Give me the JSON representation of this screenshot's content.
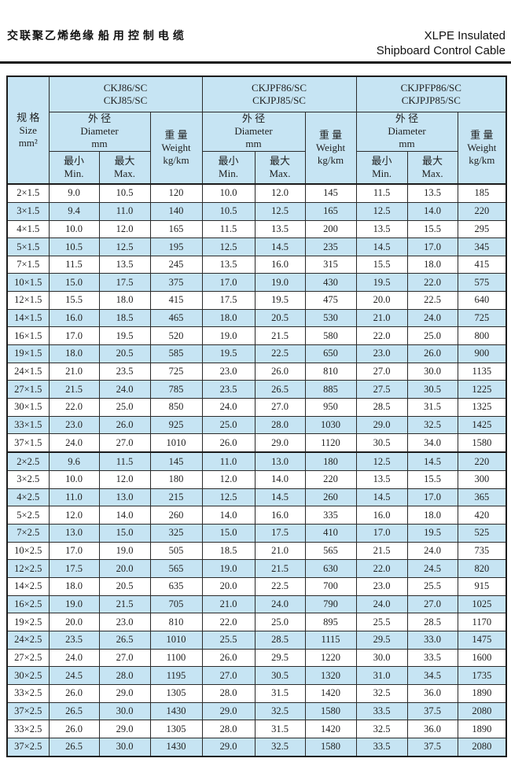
{
  "page": {
    "title_cn_line1": "交联聚乙烯绝缘",
    "title_cn_line2": "船用控制电缆",
    "title_en_line1": "XLPE Insulated",
    "title_en_line2": "Shipboard Control Cable"
  },
  "colors": {
    "stripe_blue": "#c6e4f3",
    "stripe_white": "#ffffff",
    "border": "#1c1c1c"
  },
  "table": {
    "size_header": {
      "cn": "规 格",
      "en": "Size",
      "unit": "mm²"
    },
    "groups": [
      {
        "model_line1": "CKJ86/SC",
        "model_line2": "CKJ85/SC"
      },
      {
        "model_line1": "CKJPF86/SC",
        "model_line2": "CKJPJ85/SC"
      },
      {
        "model_line1": "CKJPFP86/SC",
        "model_line2": "CKJPJP85/SC"
      }
    ],
    "diameter_header": {
      "cn": "外 径",
      "en": "Diameter",
      "unit": "mm"
    },
    "weight_header": {
      "cn": "重 量",
      "en": "Weight",
      "unit": "kg/km"
    },
    "min_header": {
      "cn": "最小",
      "en": "Min."
    },
    "max_header": {
      "cn": "最大",
      "en": "Max."
    },
    "separator_before_row_index": 15,
    "rows": [
      [
        "2×1.5",
        "9.0",
        "10.5",
        "120",
        "10.0",
        "12.0",
        "145",
        "11.5",
        "13.5",
        "185"
      ],
      [
        "3×1.5",
        "9.4",
        "11.0",
        "140",
        "10.5",
        "12.5",
        "165",
        "12.5",
        "14.0",
        "220"
      ],
      [
        "4×1.5",
        "10.0",
        "12.0",
        "165",
        "11.5",
        "13.5",
        "200",
        "13.5",
        "15.5",
        "295"
      ],
      [
        "5×1.5",
        "10.5",
        "12.5",
        "195",
        "12.5",
        "14.5",
        "235",
        "14.5",
        "17.0",
        "345"
      ],
      [
        "7×1.5",
        "11.5",
        "13.5",
        "245",
        "13.5",
        "16.0",
        "315",
        "15.5",
        "18.0",
        "415"
      ],
      [
        "10×1.5",
        "15.0",
        "17.5",
        "375",
        "17.0",
        "19.0",
        "430",
        "19.5",
        "22.0",
        "575"
      ],
      [
        "12×1.5",
        "15.5",
        "18.0",
        "415",
        "17.5",
        "19.5",
        "475",
        "20.0",
        "22.5",
        "640"
      ],
      [
        "14×1.5",
        "16.0",
        "18.5",
        "465",
        "18.0",
        "20.5",
        "530",
        "21.0",
        "24.0",
        "725"
      ],
      [
        "16×1.5",
        "17.0",
        "19.5",
        "520",
        "19.0",
        "21.5",
        "580",
        "22.0",
        "25.0",
        "800"
      ],
      [
        "19×1.5",
        "18.0",
        "20.5",
        "585",
        "19.5",
        "22.5",
        "650",
        "23.0",
        "26.0",
        "900"
      ],
      [
        "24×1.5",
        "21.0",
        "23.5",
        "725",
        "23.0",
        "26.0",
        "810",
        "27.0",
        "30.0",
        "1135"
      ],
      [
        "27×1.5",
        "21.5",
        "24.0",
        "785",
        "23.5",
        "26.5",
        "885",
        "27.5",
        "30.5",
        "1225"
      ],
      [
        "30×1.5",
        "22.0",
        "25.0",
        "850",
        "24.0",
        "27.0",
        "950",
        "28.5",
        "31.5",
        "1325"
      ],
      [
        "33×1.5",
        "23.0",
        "26.0",
        "925",
        "25.0",
        "28.0",
        "1030",
        "29.0",
        "32.5",
        "1425"
      ],
      [
        "37×1.5",
        "24.0",
        "27.0",
        "1010",
        "26.0",
        "29.0",
        "1120",
        "30.5",
        "34.0",
        "1580"
      ],
      [
        "2×2.5",
        "9.6",
        "11.5",
        "145",
        "11.0",
        "13.0",
        "180",
        "12.5",
        "14.5",
        "220"
      ],
      [
        "3×2.5",
        "10.0",
        "12.0",
        "180",
        "12.0",
        "14.0",
        "220",
        "13.5",
        "15.5",
        "300"
      ],
      [
        "4×2.5",
        "11.0",
        "13.0",
        "215",
        "12.5",
        "14.5",
        "260",
        "14.5",
        "17.0",
        "365"
      ],
      [
        "5×2.5",
        "12.0",
        "14.0",
        "260",
        "14.0",
        "16.0",
        "335",
        "16.0",
        "18.0",
        "420"
      ],
      [
        "7×2.5",
        "13.0",
        "15.0",
        "325",
        "15.0",
        "17.5",
        "410",
        "17.0",
        "19.5",
        "525"
      ],
      [
        "10×2.5",
        "17.0",
        "19.0",
        "505",
        "18.5",
        "21.0",
        "565",
        "21.5",
        "24.0",
        "735"
      ],
      [
        "12×2.5",
        "17.5",
        "20.0",
        "565",
        "19.0",
        "21.5",
        "630",
        "22.0",
        "24.5",
        "820"
      ],
      [
        "14×2.5",
        "18.0",
        "20.5",
        "635",
        "20.0",
        "22.5",
        "700",
        "23.0",
        "25.5",
        "915"
      ],
      [
        "16×2.5",
        "19.0",
        "21.5",
        "705",
        "21.0",
        "24.0",
        "790",
        "24.0",
        "27.0",
        "1025"
      ],
      [
        "19×2.5",
        "20.0",
        "23.0",
        "810",
        "22.0",
        "25.0",
        "895",
        "25.5",
        "28.5",
        "1170"
      ],
      [
        "24×2.5",
        "23.5",
        "26.5",
        "1010",
        "25.5",
        "28.5",
        "1115",
        "29.5",
        "33.0",
        "1475"
      ],
      [
        "27×2.5",
        "24.0",
        "27.0",
        "1100",
        "26.0",
        "29.5",
        "1220",
        "30.0",
        "33.5",
        "1600"
      ],
      [
        "30×2.5",
        "24.5",
        "28.0",
        "1195",
        "27.0",
        "30.5",
        "1320",
        "31.0",
        "34.5",
        "1735"
      ],
      [
        "33×2.5",
        "26.0",
        "29.0",
        "1305",
        "28.0",
        "31.5",
        "1420",
        "32.5",
        "36.0",
        "1890"
      ],
      [
        "37×2.5",
        "26.5",
        "30.0",
        "1430",
        "29.0",
        "32.5",
        "1580",
        "33.5",
        "37.5",
        "2080"
      ],
      [
        "33×2.5",
        "26.0",
        "29.0",
        "1305",
        "28.0",
        "31.5",
        "1420",
        "32.5",
        "36.0",
        "1890"
      ],
      [
        "37×2.5",
        "26.5",
        "30.0",
        "1430",
        "29.0",
        "32.5",
        "1580",
        "33.5",
        "37.5",
        "2080"
      ]
    ]
  }
}
